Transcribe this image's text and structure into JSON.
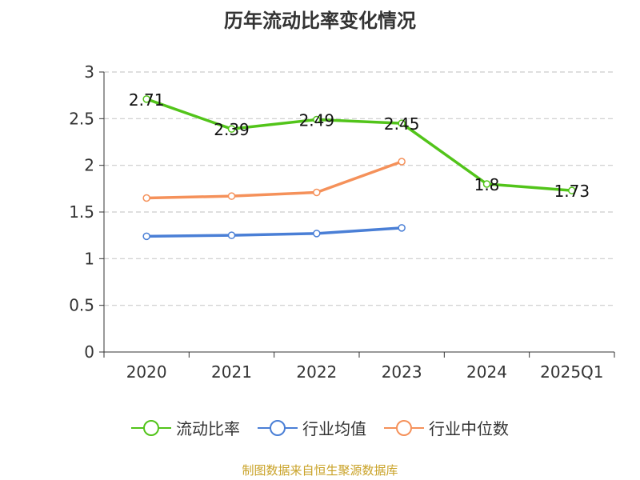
{
  "chart_data": {
    "type": "line",
    "title": "历年流动比率变化情况",
    "categories": [
      "2020",
      "2021",
      "2022",
      "2023",
      "2024",
      "2025Q1"
    ],
    "ylim": [
      0,
      3
    ],
    "yticks": [
      "0",
      "0.5",
      "1",
      "1.5",
      "2",
      "2.5",
      "3"
    ],
    "grid": true,
    "legend_position": "bottom",
    "series": [
      {
        "name": "流动比率",
        "color": "#52c41a",
        "values": [
          2.71,
          2.39,
          2.49,
          2.45,
          1.8,
          1.73
        ],
        "labels": [
          "2.71",
          "2.39",
          "2.49",
          "2.45",
          "1.8",
          "1.73"
        ]
      },
      {
        "name": "行业均值",
        "color": "#4a7fd6",
        "values": [
          1.24,
          1.25,
          1.27,
          1.33,
          null,
          null
        ]
      },
      {
        "name": "行业中位数",
        "color": "#f5915a",
        "values": [
          1.65,
          1.67,
          1.71,
          2.04,
          null,
          null
        ]
      }
    ]
  },
  "source_text": "制图数据来自恒生聚源数据库"
}
